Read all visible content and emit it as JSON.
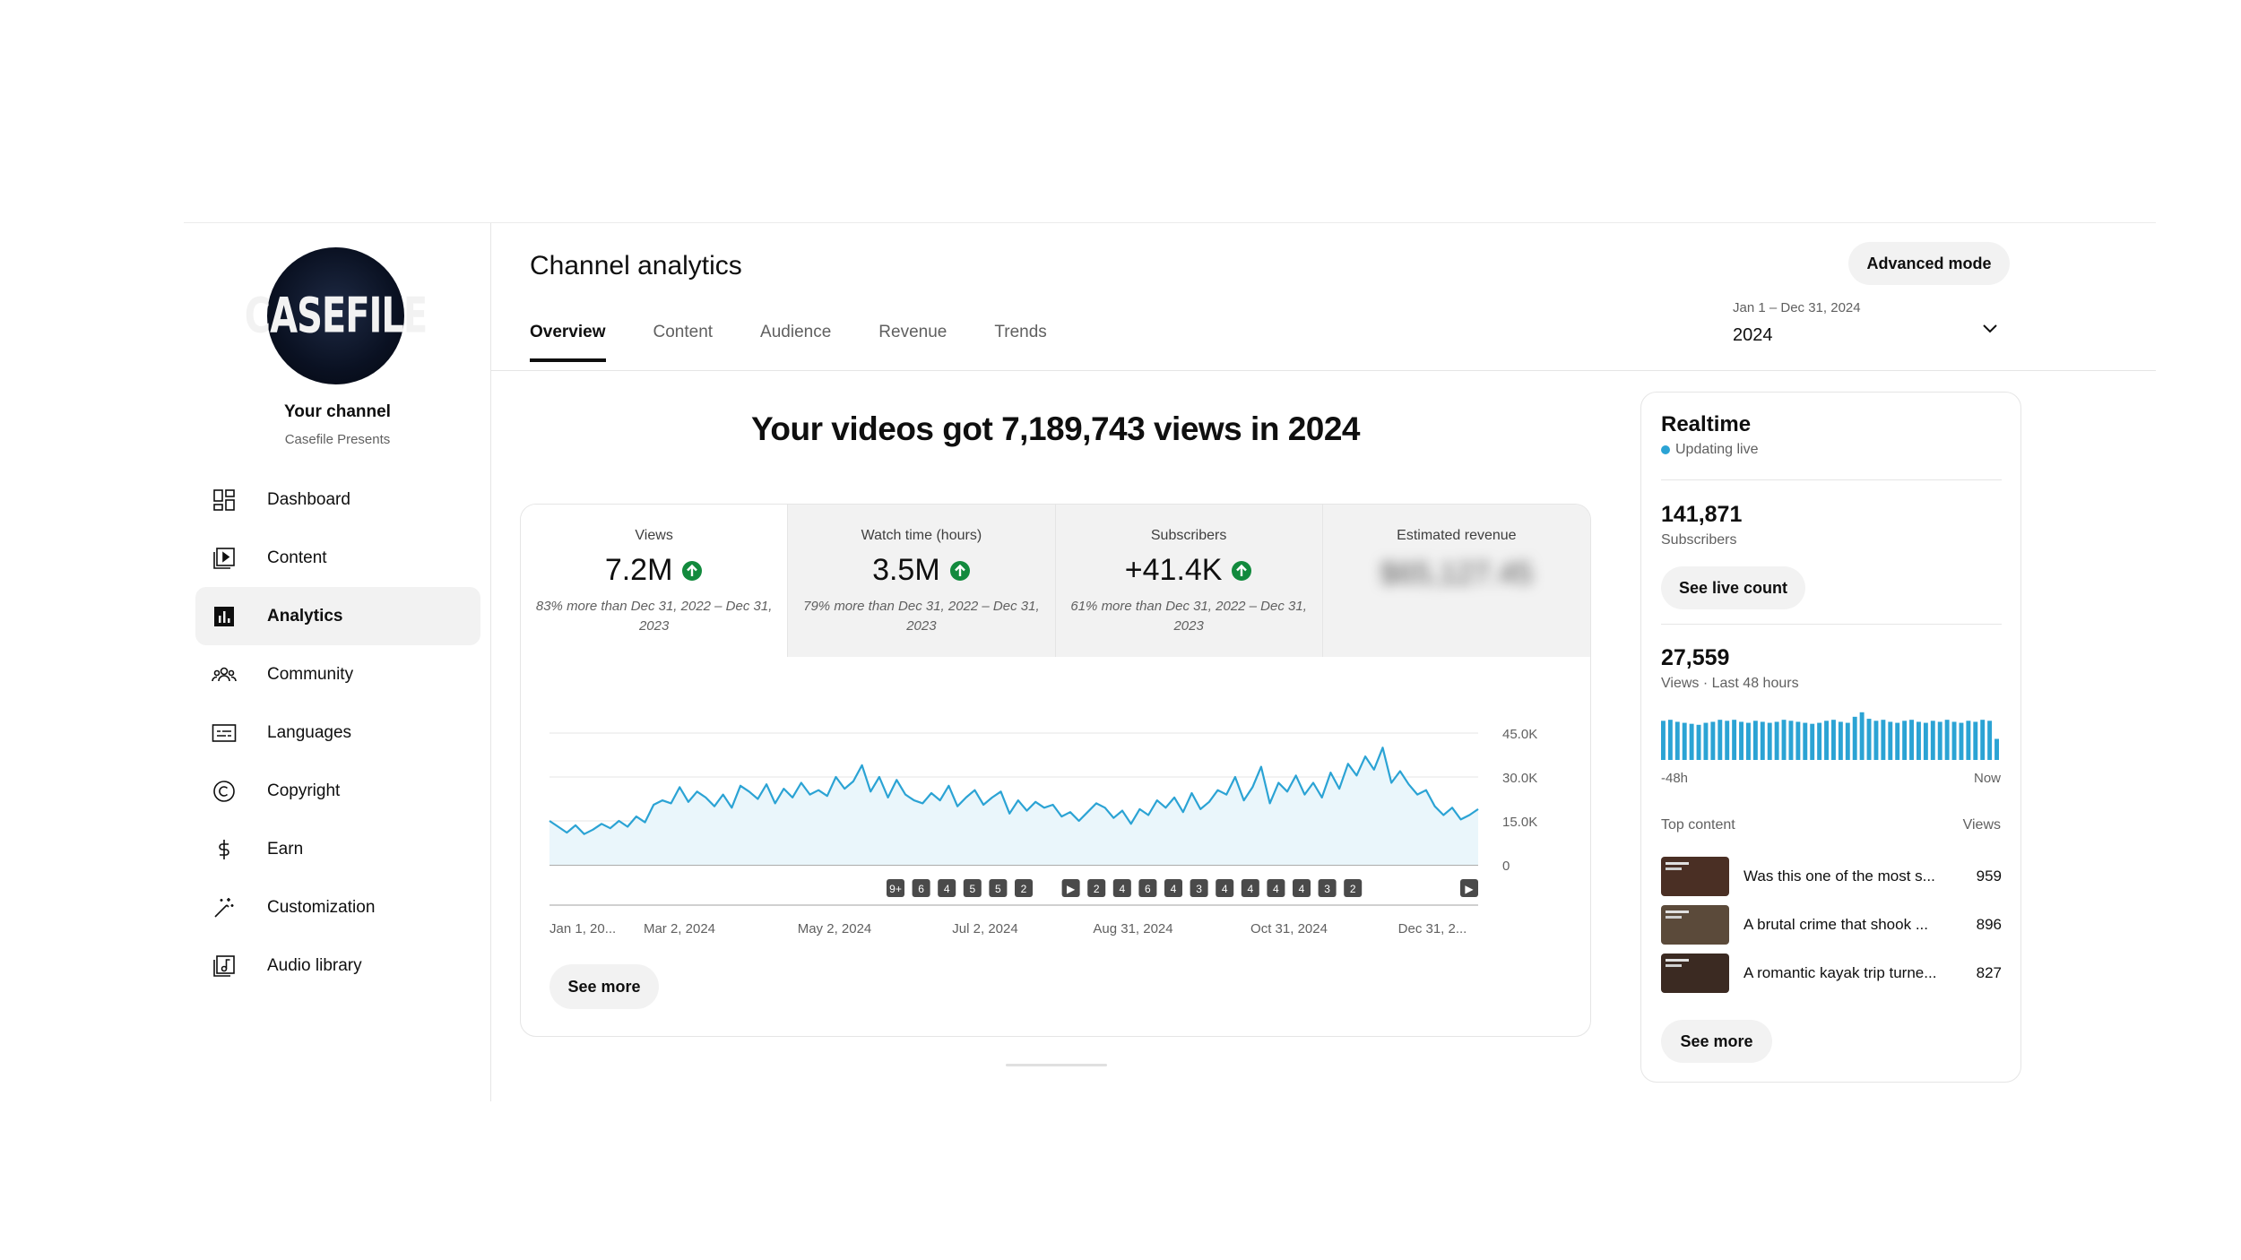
{
  "channel": {
    "avatar_text": "CASEFILE",
    "your_channel": "Your channel",
    "name": "Casefile Presents"
  },
  "nav": [
    {
      "label": "Dashboard",
      "icon": "dashboard-icon"
    },
    {
      "label": "Content",
      "icon": "content-icon"
    },
    {
      "label": "Analytics",
      "icon": "analytics-icon",
      "active": true
    },
    {
      "label": "Community",
      "icon": "community-icon"
    },
    {
      "label": "Languages",
      "icon": "languages-icon"
    },
    {
      "label": "Copyright",
      "icon": "copyright-icon"
    },
    {
      "label": "Earn",
      "icon": "earn-icon"
    },
    {
      "label": "Customization",
      "icon": "customization-icon"
    },
    {
      "label": "Audio library",
      "icon": "audio-library-icon"
    }
  ],
  "header": {
    "title": "Channel analytics",
    "advanced_mode": "Advanced mode",
    "tabs": [
      "Overview",
      "Content",
      "Audience",
      "Revenue",
      "Trends"
    ],
    "active_tab": "Overview",
    "date_range": "Jan 1 – Dec 31, 2024",
    "date_value": "2024"
  },
  "headline": "Your videos got 7,189,743 views in 2024",
  "metrics": [
    {
      "label": "Views",
      "value": "7.2M",
      "note": "83% more than Dec 31, 2022 – Dec 31, 2023",
      "trend": "up"
    },
    {
      "label": "Watch time (hours)",
      "value": "3.5M",
      "note": "79% more than Dec 31, 2022 – Dec 31, 2023",
      "trend": "up"
    },
    {
      "label": "Subscribers",
      "value": "+41.4K",
      "note": "61% more than Dec 31, 2022 – Dec 31, 2023",
      "trend": "up"
    },
    {
      "label": "Estimated revenue",
      "value": "$65,127.45",
      "note": "",
      "trend": "hidden"
    }
  ],
  "see_more": "See more",
  "chart_data": {
    "type": "line",
    "series": [
      {
        "values": [
          15000,
          13000,
          11000,
          13500,
          10500,
          12000,
          14000,
          12500,
          15000,
          13000,
          16500,
          14500,
          20500,
          22000,
          21000,
          26500,
          21500,
          25000,
          23000,
          20000,
          24000,
          19500,
          27000,
          25000,
          22500,
          27500,
          21000,
          26000,
          23000,
          28000,
          24000,
          25500,
          23500,
          30000,
          26000,
          28500,
          34000,
          25000,
          30000,
          23000,
          29000,
          24000,
          22000,
          21000,
          24500,
          22000,
          27000,
          20000,
          23000,
          25500,
          20500,
          23000,
          25000,
          17500,
          22000,
          18500,
          21500,
          19500,
          20500,
          16500,
          18000,
          15000,
          18000,
          21000,
          19500,
          16000,
          18500,
          14000,
          19000,
          17000,
          22000,
          19500,
          23000,
          18000,
          24500,
          19000,
          21500,
          25500,
          24000,
          30000,
          22000,
          26500,
          33500,
          21000,
          28000,
          25000,
          30500,
          24000,
          28000,
          23000,
          31500,
          26000,
          34500,
          30500,
          37000,
          32500,
          40000,
          28000,
          32000,
          27500,
          24000,
          25500,
          20000,
          17000,
          19500,
          15500,
          17000,
          19000
        ]
      }
    ],
    "y_ticks": [
      "45.0K",
      "30.0K",
      "15.0K",
      "0"
    ],
    "ylim": [
      0,
      45000
    ],
    "x_ticks": [
      "Jan 1, 20...",
      "Mar 2, 2024",
      "May 2, 2024",
      "Jul 2, 2024",
      "Aug 31, 2024",
      "Oct 31, 2024",
      "Dec 31, 2..."
    ],
    "markers": [
      "9+",
      "6",
      "4",
      "5",
      "5",
      "2",
      "▶",
      "2",
      "4",
      "6",
      "4",
      "3",
      "4",
      "4",
      "4",
      "4",
      "3",
      "2",
      "▶"
    ],
    "line_color": "#2ba3d4",
    "fill_color": "#eaf6fb"
  },
  "realtime": {
    "title": "Realtime",
    "live": "Updating live",
    "subscribers_value": "141,871",
    "subscribers_label": "Subscribers",
    "see_live_count": "See live count",
    "views_value": "27,559",
    "views_label": "Views · Last 48 hours",
    "axis_left": "-48h",
    "axis_right": "Now",
    "bars": [
      0.78,
      0.8,
      0.76,
      0.74,
      0.72,
      0.7,
      0.74,
      0.76,
      0.8,
      0.78,
      0.8,
      0.76,
      0.74,
      0.78,
      0.76,
      0.74,
      0.76,
      0.8,
      0.78,
      0.76,
      0.74,
      0.72,
      0.74,
      0.78,
      0.8,
      0.76,
      0.74,
      0.86,
      0.95,
      0.82,
      0.78,
      0.8,
      0.76,
      0.74,
      0.78,
      0.8,
      0.76,
      0.74,
      0.78,
      0.76,
      0.8,
      0.76,
      0.74,
      0.78,
      0.76,
      0.8,
      0.78,
      0.42
    ],
    "bar_color": "#2ba3d4",
    "top_content_label": "Top content",
    "views_col_label": "Views",
    "top_content": [
      {
        "title": "Was this one of the most s...",
        "views": "959",
        "thumb_color": "#4a2f24"
      },
      {
        "title": "A brutal crime that shook ...",
        "views": "896",
        "thumb_color": "#5b4a3a"
      },
      {
        "title": "A romantic kayak trip turne...",
        "views": "827",
        "thumb_color": "#3b2a22"
      }
    ],
    "see_more": "See more"
  },
  "colors": {
    "accent": "#2ba3d4",
    "up_green": "#128a3d"
  }
}
